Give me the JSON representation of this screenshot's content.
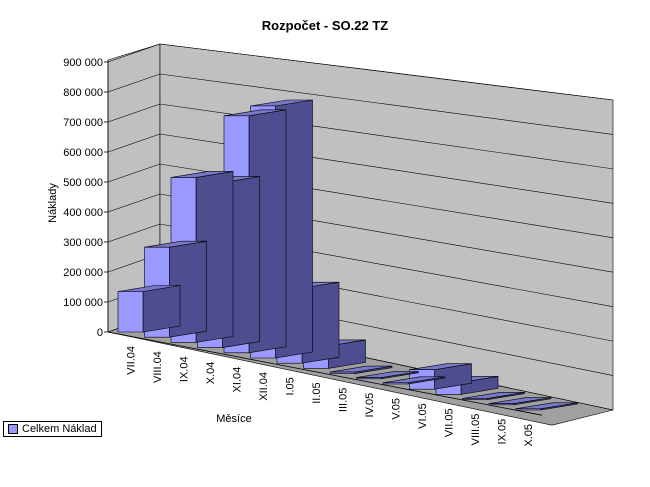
{
  "chart_data": {
    "type": "bar",
    "title": "Rozpočet - SO.22 TZ",
    "xlabel": "Měsíce",
    "ylabel": "Náklady",
    "ylim": [
      0,
      900000
    ],
    "yticks": [
      "0",
      "100 000",
      "200 000",
      "300 000",
      "400 000",
      "500 000",
      "600 000",
      "700 000",
      "800 000",
      "900 000"
    ],
    "categories": [
      "VII.04",
      "VIII.04",
      "IX.04",
      "X.04",
      "XI.04",
      "XII.04",
      "I.05",
      "II.05",
      "III.05",
      "IV.05",
      "V.05",
      "VI.05",
      "VII.05",
      "VIII.05",
      "IX.05",
      "X.05"
    ],
    "series": [
      {
        "name": "Celkem Náklad",
        "values": [
          135000,
          300000,
          550000,
          550000,
          790000,
          840000,
          250000,
          75000,
          5000,
          3000,
          0,
          65000,
          40000,
          3000,
          0,
          0
        ]
      }
    ],
    "grid": true,
    "legend": "bottom-left",
    "colors": {
      "bar_front": "#9999ff",
      "bar_side": "#4d4d8f",
      "bar_top": "#7878c8",
      "wall": "#c0c0c0",
      "floor": "#a0a0a0"
    }
  }
}
